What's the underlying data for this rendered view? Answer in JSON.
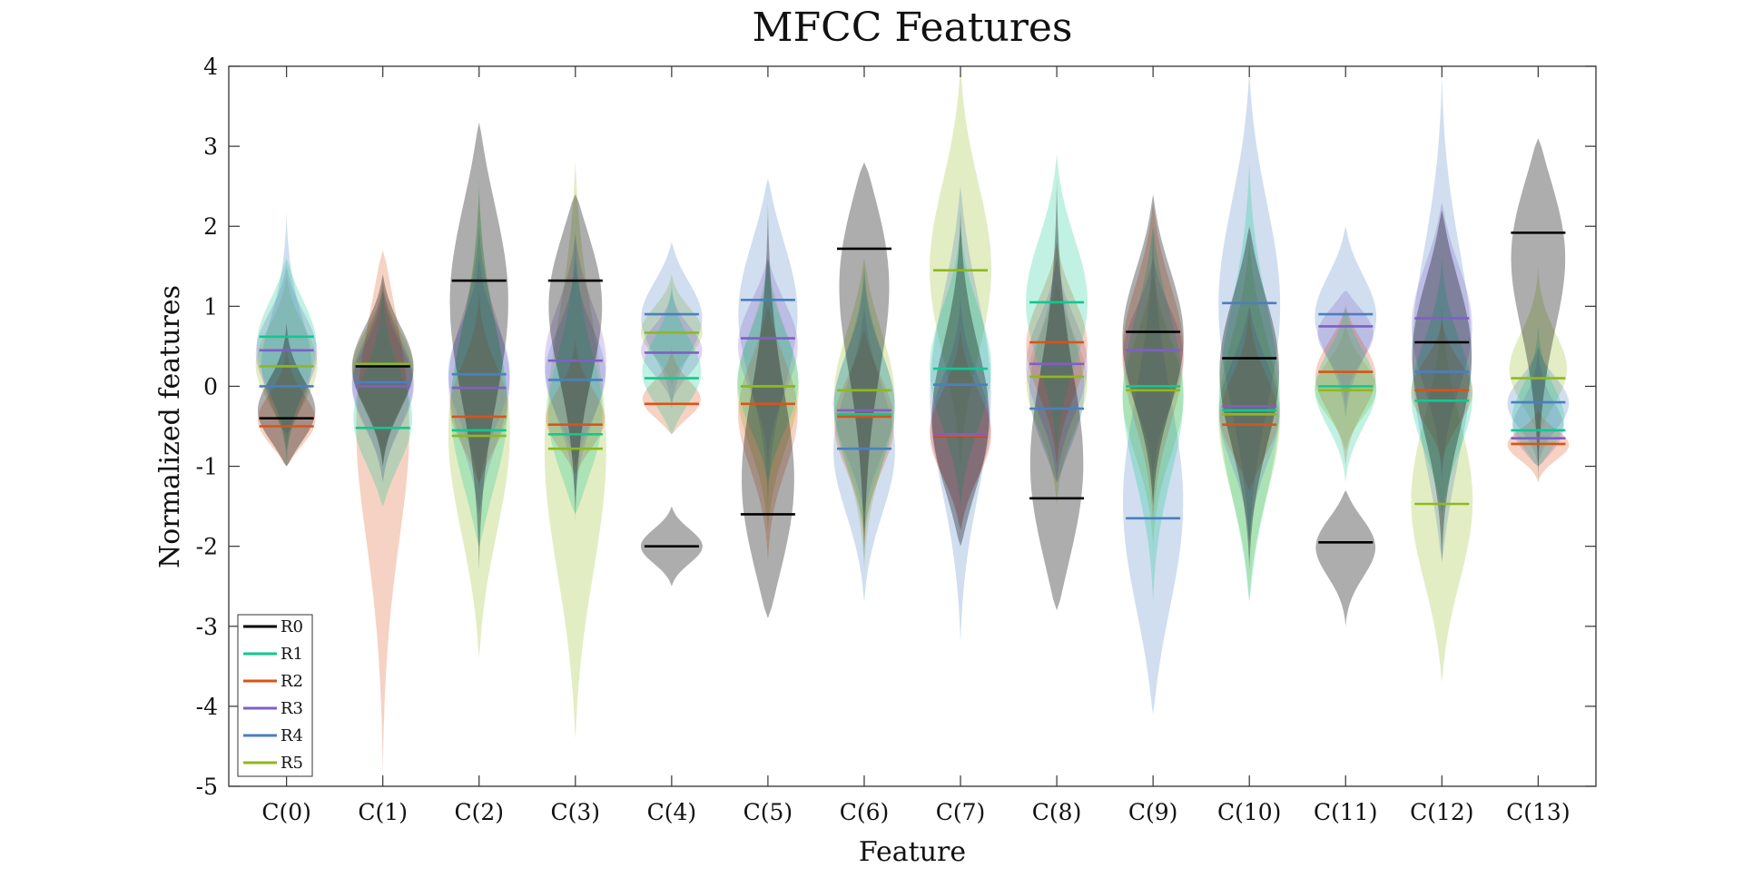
{
  "chart_data": {
    "type": "violin",
    "title": "MFCC Features",
    "xlabel": "Feature",
    "ylabel": "Normalized features",
    "ylim": [
      -5,
      4
    ],
    "yticks": [
      4,
      3,
      2,
      1,
      0,
      -1,
      -2,
      -3,
      -4,
      -5
    ],
    "grid": false,
    "legend_position": "bottom-left",
    "categories": [
      "C(0)",
      "C(1)",
      "C(2)",
      "C(3)",
      "C(4)",
      "C(5)",
      "C(6)",
      "C(7)",
      "C(8)",
      "C(9)",
      "C(10)",
      "C(11)",
      "C(12)",
      "C(13)"
    ],
    "series": [
      {
        "name": "R0",
        "color": "#000000",
        "medians": [
          -0.4,
          0.25,
          1.32,
          1.32,
          -2.0,
          -1.6,
          1.72,
          -0.62,
          -1.4,
          0.68,
          0.35,
          -1.95,
          0.55,
          1.92
        ],
        "extents": [
          [
            -1.0,
            0.8
          ],
          [
            -1.0,
            1.4
          ],
          [
            -2.3,
            3.3
          ],
          [
            -1.7,
            2.4
          ],
          [
            -2.5,
            -1.5
          ],
          [
            -2.9,
            2.3
          ],
          [
            -2.2,
            2.8
          ],
          [
            -2.0,
            2.2
          ],
          [
            -2.8,
            2.6
          ],
          [
            -1.5,
            2.4
          ],
          [
            -2.3,
            2.0
          ],
          [
            -3.0,
            -1.3
          ],
          [
            -2.2,
            2.2
          ],
          [
            -1.2,
            3.1
          ]
        ]
      },
      {
        "name": "R1",
        "color": "#10c890",
        "medians": [
          0.62,
          -0.52,
          -0.55,
          -0.6,
          0.1,
          0.0,
          -0.35,
          0.22,
          1.05,
          0.0,
          -0.3,
          0.0,
          -0.18,
          -0.55
        ],
        "extents": [
          [
            -1.0,
            1.6
          ],
          [
            -1.5,
            1.2
          ],
          [
            -2.0,
            2.6
          ],
          [
            -1.6,
            2.0
          ],
          [
            -0.6,
            1.3
          ],
          [
            -1.2,
            1.6
          ],
          [
            -1.8,
            1.5
          ],
          [
            -1.5,
            2.0
          ],
          [
            -0.8,
            2.9
          ],
          [
            -2.7,
            2.0
          ],
          [
            -2.7,
            2.8
          ],
          [
            -1.2,
            1.0
          ],
          [
            -1.6,
            1.6
          ],
          [
            -1.0,
            0.8
          ]
        ]
      },
      {
        "name": "R2",
        "color": "#d95319",
        "medians": [
          -0.5,
          0.0,
          -0.38,
          -0.48,
          -0.22,
          -0.22,
          -0.38,
          -0.62,
          0.55,
          0.45,
          -0.48,
          0.18,
          -0.05,
          -0.72
        ],
        "extents": [
          [
            -1.0,
            0.5
          ],
          [
            -4.9,
            1.7
          ],
          [
            -1.2,
            1.2
          ],
          [
            -1.1,
            0.6
          ],
          [
            -0.6,
            0.5
          ],
          [
            -2.2,
            1.0
          ],
          [
            -2.0,
            0.7
          ],
          [
            -1.8,
            0.7
          ],
          [
            -1.0,
            1.8
          ],
          [
            -1.7,
            2.3
          ],
          [
            -1.3,
            1.0
          ],
          [
            -1.0,
            1.0
          ],
          [
            -1.0,
            0.8
          ],
          [
            -1.2,
            -0.3
          ]
        ]
      },
      {
        "name": "R3",
        "color": "#7e5fc8",
        "medians": [
          0.45,
          0.0,
          -0.02,
          0.32,
          0.42,
          0.6,
          -0.3,
          -0.6,
          0.28,
          0.45,
          -0.25,
          0.75,
          0.85,
          -0.65
        ],
        "extents": [
          [
            -0.8,
            1.5
          ],
          [
            -1.2,
            1.2
          ],
          [
            -1.6,
            2.0
          ],
          [
            -1.4,
            1.9
          ],
          [
            -0.2,
            1.2
          ],
          [
            -1.0,
            1.6
          ],
          [
            -1.6,
            1.4
          ],
          [
            -1.8,
            1.1
          ],
          [
            -1.2,
            1.6
          ],
          [
            -1.2,
            1.6
          ],
          [
            -2.0,
            1.0
          ],
          [
            -0.3,
            1.2
          ],
          [
            -1.2,
            2.3
          ],
          [
            -1.0,
            0.5
          ]
        ]
      },
      {
        "name": "R4",
        "color": "#4a7fc1",
        "medians": [
          0.0,
          0.05,
          0.15,
          0.08,
          0.9,
          1.08,
          -0.78,
          0.02,
          -0.28,
          -1.65,
          1.04,
          0.9,
          0.18,
          -0.2
        ],
        "extents": [
          [
            -0.6,
            2.2
          ],
          [
            -1.2,
            1.3
          ],
          [
            -1.3,
            1.6
          ],
          [
            -1.0,
            1.6
          ],
          [
            -0.3,
            1.8
          ],
          [
            -1.5,
            2.6
          ],
          [
            -2.7,
            1.0
          ],
          [
            -3.2,
            2.5
          ],
          [
            -1.2,
            2.0
          ],
          [
            -4.1,
            2.0
          ],
          [
            -2.0,
            3.9
          ],
          [
            -0.4,
            2.0
          ],
          [
            -2.2,
            3.9
          ],
          [
            -1.0,
            0.5
          ]
        ]
      },
      {
        "name": "R5",
        "color": "#8fb91a",
        "medians": [
          0.25,
          0.28,
          -0.62,
          -0.78,
          0.67,
          0.0,
          -0.05,
          1.45,
          0.12,
          -0.05,
          -0.35,
          -0.05,
          -1.47,
          0.1
        ],
        "extents": [
          [
            -0.8,
            1.4
          ],
          [
            -1.0,
            1.2
          ],
          [
            -3.4,
            2.4
          ],
          [
            -4.4,
            2.8
          ],
          [
            0.0,
            1.4
          ],
          [
            -1.8,
            1.6
          ],
          [
            -2.3,
            1.6
          ],
          [
            -1.0,
            4.0
          ],
          [
            -1.5,
            1.3
          ],
          [
            -2.0,
            1.4
          ],
          [
            -2.7,
            1.8
          ],
          [
            -0.8,
            0.8
          ],
          [
            -3.7,
            1.0
          ],
          [
            -0.6,
            1.5
          ]
        ]
      }
    ]
  }
}
